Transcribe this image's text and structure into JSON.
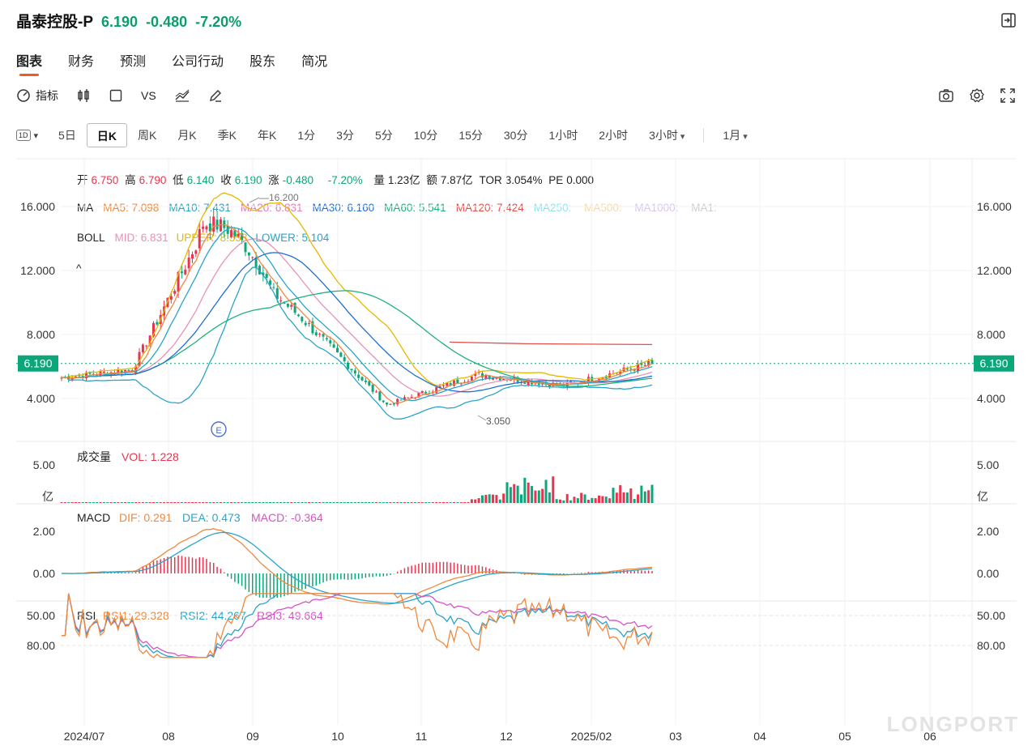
{
  "header": {
    "name": "晶泰控股-P",
    "price": "6.190",
    "change": "-0.480",
    "change_pct": "-7.20%"
  },
  "tabs": [
    "图表",
    "财务",
    "预测",
    "公司行动",
    "股东",
    "简况"
  ],
  "toolbar": {
    "indicator_label": "指标",
    "vs_label": "VS"
  },
  "periods": {
    "flag": "1D",
    "items": [
      "5日",
      "日K",
      "周K",
      "月K",
      "季K",
      "年K",
      "1分",
      "3分",
      "5分",
      "10分",
      "15分",
      "30分",
      "1小时",
      "2小时",
      "3小时"
    ],
    "active": "日K",
    "range": "1月"
  },
  "ohlc": {
    "open_label": "开",
    "open": "6.750",
    "high_label": "高",
    "high": "6.790",
    "low_label": "低",
    "low": "6.140",
    "close_label": "收",
    "close": "6.190",
    "chg_label": "涨",
    "chg": "-0.480",
    "chg_pct": "-7.20%",
    "vol_label": "量",
    "vol": "1.23亿",
    "amt_label": "额",
    "amt": "7.87亿",
    "tor_label": "TOR",
    "tor": "3.054%",
    "pe_label": "PE",
    "pe": "0.000"
  },
  "ma": {
    "label": "MA",
    "items": [
      {
        "name": "MA5",
        "value": "7.098",
        "color": "#f0883e"
      },
      {
        "name": "MA10",
        "value": "7.431",
        "color": "#2aa4c9"
      },
      {
        "name": "MA20",
        "value": "6.831",
        "color": "#e17ab8"
      },
      {
        "name": "MA30",
        "value": "6.160",
        "color": "#1f6fd1"
      },
      {
        "name": "MA60",
        "value": "5.541",
        "color": "#20b07a"
      },
      {
        "name": "MA120",
        "value": "7.424",
        "color": "#e0514c"
      },
      {
        "name": "MA250",
        "value": "",
        "color": "#8fe3f0"
      },
      {
        "name": "MA500",
        "value": "",
        "color": "#f5d9a6"
      },
      {
        "name": "MA1000",
        "value": "",
        "color": "#d6c6f0"
      },
      {
        "name": "MA1",
        "value": "",
        "color": "#cccccc"
      }
    ]
  },
  "boll": {
    "label": "BOLL",
    "items": [
      {
        "name": "MID",
        "value": "6.831",
        "color": "#e792b8"
      },
      {
        "name": "UPPER",
        "value": "8.558",
        "color": "#e6b800"
      },
      {
        "name": "LOWER",
        "value": "5.104",
        "color": "#2aa4c9"
      }
    ]
  },
  "main_axis": {
    "ticks": [
      "16.000",
      "12.000",
      "8.000",
      "4.000"
    ],
    "current": "6.190",
    "high_mark": "16.200",
    "low_mark": "3.050",
    "event": "E"
  },
  "vol_panel": {
    "title": "成交量",
    "vol_label": "VOL",
    "vol_value": "1.228",
    "ticks": [
      "5.00"
    ],
    "unit": "亿"
  },
  "macd_panel": {
    "title": "MACD",
    "dif_label": "DIF",
    "dif": "0.291",
    "dea_label": "DEA",
    "dea": "0.473",
    "macd_label": "MACD",
    "macd": "-0.364",
    "ticks": [
      "2.00",
      "0.00"
    ]
  },
  "rsi_panel": {
    "title": "RSI",
    "rsi1_label": "RSI1",
    "rsi1": "29.328",
    "rsi2_label": "RSI2",
    "rsi2": "44.267",
    "rsi3_label": "RSI3",
    "rsi3": "49.664",
    "ticks": [
      "80.00",
      "50.00"
    ]
  },
  "x_labels": [
    "2024/07",
    "08",
    "09",
    "10",
    "11",
    "12",
    "2025/02",
    "03",
    "04",
    "05",
    "06"
  ],
  "watermark": "LONGPORT",
  "colors": {
    "up": "#e8344e",
    "down": "#0ba77a"
  },
  "chart_data": {
    "type": "line",
    "title": "",
    "x": [
      "2024/07",
      "08",
      "09",
      "10",
      "11",
      "12",
      "2025/02",
      "03"
    ],
    "series": [
      {
        "name": "",
        "values": [
          5.3,
          5.8,
          14.5,
          9.0,
          3.6,
          5.5,
          4.8,
          6.19
        ]
      }
    ],
    "ylim": [
      3.0,
      16.5
    ]
  }
}
